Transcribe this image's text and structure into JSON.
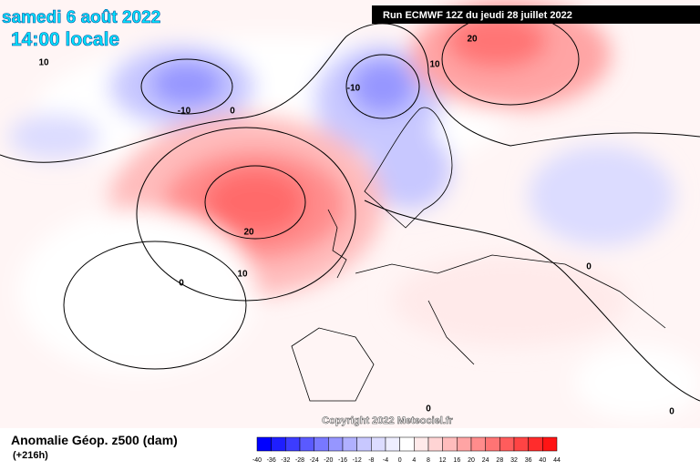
{
  "header": {
    "date": "samedi 6 août 2022",
    "time": "14:00 locale",
    "run": "Run ECMWF 12Z du jeudi 28 juillet 2022"
  },
  "map": {
    "contour_labels": [
      "10",
      "-10",
      "0",
      "-10",
      "10",
      "20",
      "20",
      "10",
      "0",
      "0",
      "0",
      "0"
    ],
    "copyright": "Copyright 2022 Meteociel.fr"
  },
  "legend": {
    "title": "Anomalie Géop. z500 (dam)",
    "lead_time": "(+216h)",
    "ticks": [
      -40,
      -36,
      -32,
      -28,
      -24,
      -20,
      -16,
      -12,
      -8,
      -4,
      0,
      4,
      8,
      12,
      16,
      20,
      24,
      28,
      32,
      36,
      40,
      44
    ],
    "colors": [
      "#0000ff",
      "#1e1eff",
      "#3c3cff",
      "#5a5aff",
      "#7878ff",
      "#9696ff",
      "#b0b0ff",
      "#c8c8ff",
      "#dcdcff",
      "#eeeeff",
      "#ffffff",
      "#ffeaea",
      "#ffd4d4",
      "#ffbcbc",
      "#ffa4a4",
      "#ff8c8c",
      "#ff7474",
      "#ff5c5c",
      "#ff4444",
      "#ff2c2c",
      "#ff1414"
    ]
  }
}
